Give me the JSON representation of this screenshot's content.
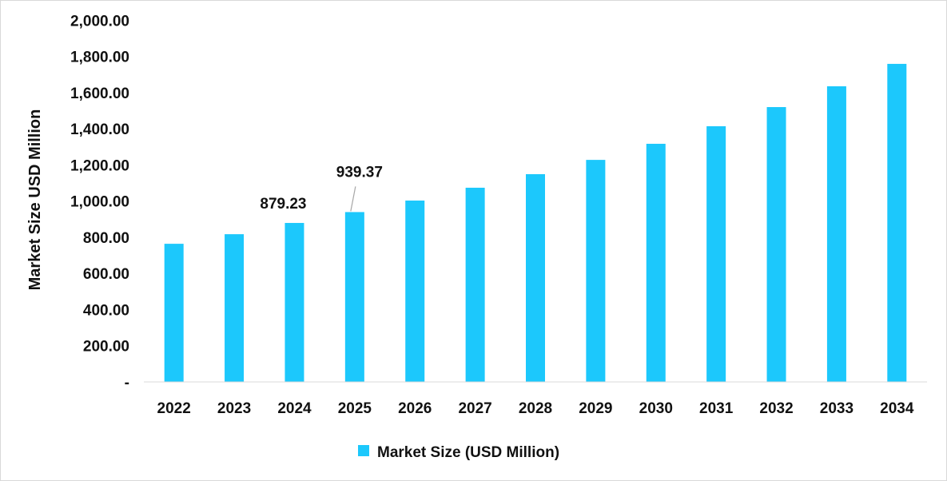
{
  "chart_data": {
    "type": "bar",
    "title": "",
    "xlabel": "",
    "ylabel": "Market Size USD Million",
    "ylim": [
      0,
      2000
    ],
    "yticks": [
      "-",
      "200.00",
      "400.00",
      "600.00",
      "800.00",
      "1,000.00",
      "1,200.00",
      "1,400.00",
      "1,600.00",
      "1,800.00",
      "2,000.00"
    ],
    "categories": [
      "2022",
      "2023",
      "2024",
      "2025",
      "2026",
      "2027",
      "2028",
      "2029",
      "2030",
      "2031",
      "2032",
      "2033",
      "2034"
    ],
    "series": [
      {
        "name": "Market Size (USD Million)",
        "color": "#1cc8fc",
        "values": [
          764,
          817,
          879.23,
          939.37,
          1003,
          1074,
          1149,
          1228,
          1317,
          1414,
          1520,
          1635,
          1759
        ]
      }
    ],
    "data_labels": [
      {
        "category": "2024",
        "text": "879.23"
      },
      {
        "category": "2025",
        "text": "939.37"
      }
    ],
    "grid": false,
    "legend": {
      "position": "bottom",
      "label": "Market Size (USD Million)"
    }
  }
}
